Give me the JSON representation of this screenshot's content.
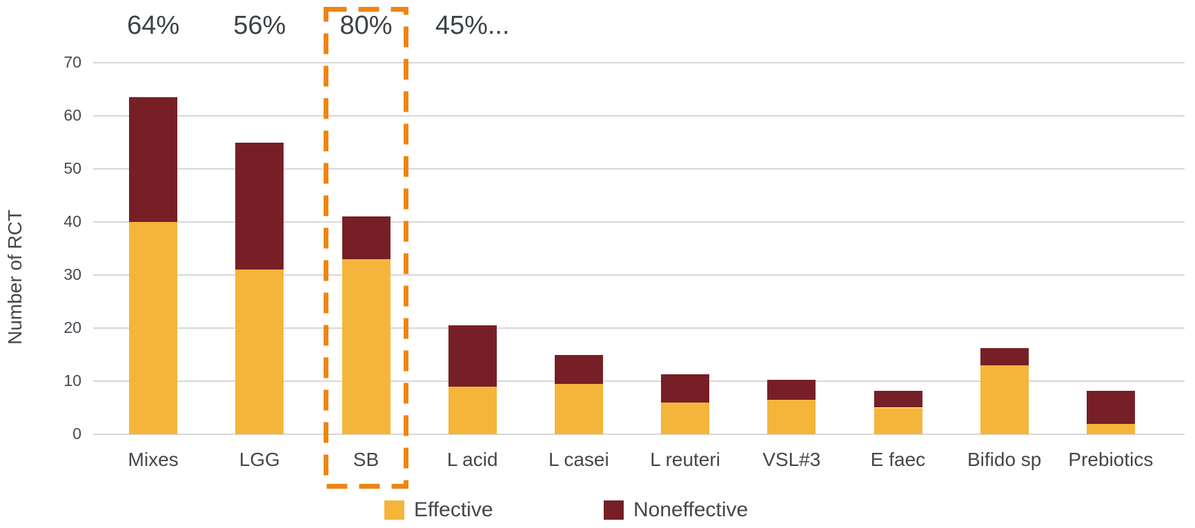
{
  "chart_data": {
    "type": "bar",
    "stacked": true,
    "title": "",
    "xlabel": "",
    "ylabel": "Number of RCT",
    "ylim": [
      0,
      70
    ],
    "yticks": [
      0,
      10,
      20,
      30,
      40,
      50,
      60,
      70
    ],
    "grid": true,
    "legend_position": "bottom-center",
    "categories": [
      "Mixes",
      "LGG",
      "SB",
      "L acid",
      "L casei",
      "L reuteri",
      "VSL#3",
      "E faec",
      "Bifido sp",
      "Prebiotics"
    ],
    "series": [
      {
        "name": "Effective",
        "color": "#F5B53B",
        "values": [
          40,
          31,
          33,
          9,
          9.5,
          6,
          6.5,
          5,
          13,
          2
        ]
      },
      {
        "name": "Noneffective",
        "color": "#771F26",
        "values": [
          23.5,
          24,
          8,
          11.5,
          5.5,
          5.3,
          3.7,
          3.2,
          3.2,
          6.2
        ]
      }
    ],
    "annotations": [
      {
        "category_index": 0,
        "text": "64%"
      },
      {
        "category_index": 1,
        "text": "56%"
      },
      {
        "category_index": 2,
        "text": "80%"
      },
      {
        "category_index": 3,
        "text": "45%..."
      }
    ],
    "highlight": {
      "category_index": 2,
      "category": "SB",
      "style": "dashed-rectangle",
      "color": "#EE8512"
    }
  },
  "colors": {
    "background": "#FFFFFF",
    "gridline": "#D7D7D7",
    "text": "#43474C",
    "effective": "#F5B53B",
    "noneffective": "#771F26",
    "highlight_border": "#EE8512"
  }
}
